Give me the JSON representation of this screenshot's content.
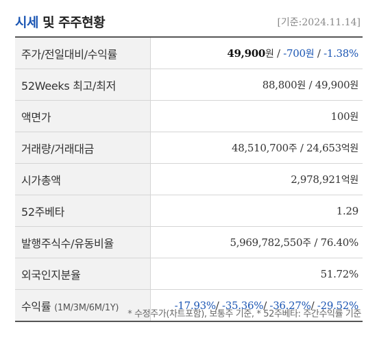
{
  "header": {
    "title_highlight": "시세",
    "title_rest": " 및 주주현황",
    "date_label": "[기준:2024.11.14]"
  },
  "rows": [
    {
      "label": "주가/전일대비/수익률",
      "price": "49,900",
      "change": "-700",
      "rate": "-1.38%",
      "won": "원"
    },
    {
      "label": "52Weeks 최고/최저",
      "high": "88,800",
      "low": "49,900",
      "won": "원"
    },
    {
      "label": "액면가",
      "value": "100",
      "won": "원"
    },
    {
      "label": "거래량/거래대금",
      "volume": "48,510,700",
      "volume_unit": "주",
      "amount": "24,653",
      "amount_unit": "억원"
    },
    {
      "label": "시가총액",
      "value": "2,978,921",
      "unit": "억원"
    },
    {
      "label": "52주베타",
      "value": "1.29"
    },
    {
      "label": "발행주식수/유동비율",
      "shares": "5,969,782,550",
      "shares_unit": "주",
      "float": "76.40%"
    },
    {
      "label": "외국인지분율",
      "value": "51.72%"
    },
    {
      "label": "수익률",
      "label_sub": "(1M/3M/6M/1Y)",
      "r1": "-17.93%",
      "r2": "-35.36%",
      "r3": "-36.27%",
      "r4": "-29.52%"
    }
  ],
  "footnote": "* 수정주가(차트포함), 보통주 기준, * 52주베타: 주간수익률 기준"
}
